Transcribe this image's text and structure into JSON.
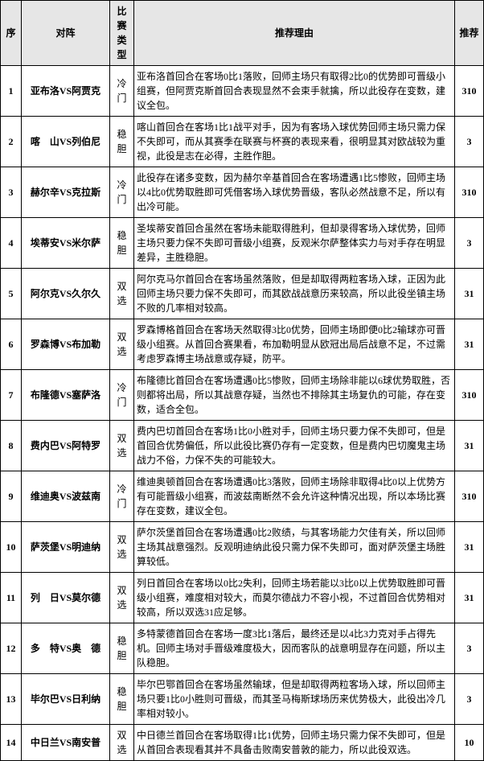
{
  "headers": {
    "idx": "序",
    "match": "对阵",
    "type": "比赛类型",
    "reason": "推荐理由",
    "rec": "推荐"
  },
  "colors": {
    "header_bg": "#e6e6e6",
    "border": "#000000",
    "text": "#000000",
    "bg": "#ffffff"
  },
  "rows": [
    {
      "idx": "1",
      "match": "亚布洛VS阿贾克",
      "type": "冷门",
      "reason": "亚布洛首回合在客场0比1落败，回师主场只有取得2比0的优势即可晋级小组赛，但阿贾克斯首回合表现显然不会束手就擒，所以此役存在变数，建议全包。",
      "rec": "310"
    },
    {
      "idx": "2",
      "match": "喀　山VS列伯尼",
      "type": "稳胆",
      "reason": "喀山首回合在客场1比1战平对手，因为有客场入球优势回师主场只需力保不失即可，而从其赛季在联赛与杯赛的表现来看，很明显其对欧战较为重视，此役是志在必得，主胜作胆。",
      "rec": "3"
    },
    {
      "idx": "3",
      "match": "赫尔辛VS克拉斯",
      "type": "冷门",
      "reason": "此役存在诸多变数，因为赫尔辛基首回合在客场遭遇1比5惨败，回师主场以4比0优势取胜即可凭借客场入球优势晋级，客队必然战意不足，所以有出冷可能。",
      "rec": "310"
    },
    {
      "idx": "4",
      "match": "埃蒂安VS米尔萨",
      "type": "稳胆",
      "reason": "圣埃蒂安首回合虽然在客场未能取得胜利，但却录得客场入球优势，回师主场只要力保不失即可晋级小组赛，反观米尔萨整体实力与对手存在明显差异，主胜稳胆。",
      "rec": "3"
    },
    {
      "idx": "5",
      "match": "阿尔克VS久尔久",
      "type": "双选",
      "reason": "阿尔克马尔首回合在客场虽然落败，但是却取得两粒客场入球，正因为此回师主场只要力保不失即可，而其欧战战意历来较高，所以此役坐镇主场不败的几率相对较高。",
      "rec": "31"
    },
    {
      "idx": "6",
      "match": "罗森博VS布加勒",
      "type": "双选",
      "reason": "罗森博格首回合在客场天然取得3比0优势，回师主场即便0比2输球亦可晋级小组赛。从首回合赛果看，布加勒明显从欧冠出局后战意不足，不过需考虑罗森博主场战意或存疑，防平。",
      "rec": "31"
    },
    {
      "idx": "7",
      "match": "布隆德VS塞萨洛",
      "type": "冷门",
      "reason": "布隆德比首回合在客场遭遇0比5惨败，回师主场除非能以6球优势取胜，否则都将出局，所以其战意存疑，当然也不排除其主场复仇的可能，存在变数，适合全包。",
      "rec": "310"
    },
    {
      "idx": "8",
      "match": "费内巴VS阿特罗",
      "type": "双选",
      "reason": "费内巴切首回合在客场1比0小胜对手，回师主场只要力保不失即可，但是首回合优势偏低，所以此役比赛仍存有一定变数，但是费内巴切魔鬼主场战力不俗，力保不失的可能较大。",
      "rec": "31"
    },
    {
      "idx": "9",
      "match": "维迪奥VS波兹南",
      "type": "冷门",
      "reason": "维迪奥顿首回合在客场遭遇0比3落败，回师主场除非取得4比0以上优势方有可能晋级小组赛，而波兹南断然不会允许这种情况出现，所以本场比赛存在变数，建议全包。",
      "rec": "310"
    },
    {
      "idx": "10",
      "match": "萨茨堡VS明迪纳",
      "type": "双选",
      "reason": "萨尔茨堡首回合在客场遭遇0比2败绩，与其客场能力欠佳有关，所以回师主场其战意强烈。反观明迪纳此役只需力保不失即可，面对萨茨堡主场胜算较低。",
      "rec": "31"
    },
    {
      "idx": "11",
      "match": "列　日VS莫尔德",
      "type": "双选",
      "reason": "列日首回合在客场以0比2失利，回师主场若能以3比0以上优势取胜即可晋级小组赛，难度相对较大，而莫尔德战力不容小视，不过首回合优势相对较高，所以双选31应足够。",
      "rec": "31"
    },
    {
      "idx": "12",
      "match": "多　特VS奥　德",
      "type": "稳胆",
      "reason": "多特蒙德首回合在客场一度3比1落后，最终还是以4比3力克对手占得先机。回师主场对手晋级难度极大，因而客队的战意明显存在问题，所以主队稳胆。",
      "rec": "3"
    },
    {
      "idx": "13",
      "match": "毕尔巴VS日利纳",
      "type": "稳胆",
      "reason": "毕尔巴鄂首回合在客场虽然输球，但是却取得两粒客场入球，所以回师主场只要1比0小胜则可晋级，而其圣马梅斯球场历来优势极大，此役出冷几率相对较小。",
      "rec": "3"
    },
    {
      "idx": "14",
      "match": "中日兰VS南安普",
      "type": "双选",
      "reason": "中日德兰首回合在客场取得1比1优势，回师主场只需力保不失即可，但是从首回合表现看其并不具备击败南安普敦的能力，所以此役双选。",
      "rec": "10"
    }
  ]
}
